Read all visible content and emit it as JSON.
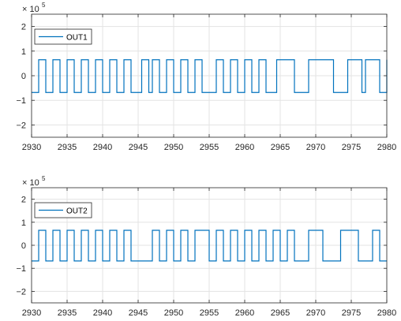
{
  "chart_data": [
    {
      "type": "line",
      "step": true,
      "xlim": [
        2930,
        2980
      ],
      "ylim": [
        -2.5,
        2.5
      ],
      "y_scale_label": "× 10",
      "y_scale_exponent": "5",
      "xticks": [
        2930,
        2935,
        2940,
        2945,
        2950,
        2955,
        2960,
        2965,
        2970,
        2975,
        2980
      ],
      "yticks": [
        -2,
        -1,
        0,
        1,
        2
      ],
      "ytick_labels": [
        "−2",
        "−1",
        "0",
        "1",
        "2"
      ],
      "grid": true,
      "legend_position": "top-left",
      "line_color": "#0072BD",
      "levels": [
        -0.68,
        0.65
      ],
      "series": [
        {
          "name": "OUT1",
          "start_level": -0.68,
          "transitions": [
            2931,
            2932,
            2933,
            2934,
            2935,
            2936,
            2937,
            2938,
            2939,
            2940,
            2941,
            2942,
            2943,
            2944,
            2945.5,
            2946.5,
            2947,
            2948,
            2949,
            2950,
            2951,
            2952,
            2953,
            2954,
            2956,
            2957,
            2958,
            2959,
            2960,
            2961,
            2962,
            2963,
            2964.5,
            2967,
            2969,
            2972.5,
            2974.5,
            2976.5,
            2977,
            2979,
            2980
          ]
        },
        {
          "name": "OUT2",
          "start_level": -0.68,
          "transitions": [
            2931,
            2932,
            2933,
            2934,
            2935,
            2936,
            2937,
            2938,
            2939,
            2940,
            2941,
            2942,
            2943,
            2944,
            2947,
            2948,
            2949,
            2950,
            2951,
            2952,
            2953,
            2955,
            2956,
            2957,
            2958,
            2959,
            2960,
            2961,
            2962,
            2963,
            2964,
            2965,
            2966,
            2967,
            2969,
            2971,
            2973.5,
            2976,
            2978,
            2979
          ]
        }
      ]
    }
  ]
}
